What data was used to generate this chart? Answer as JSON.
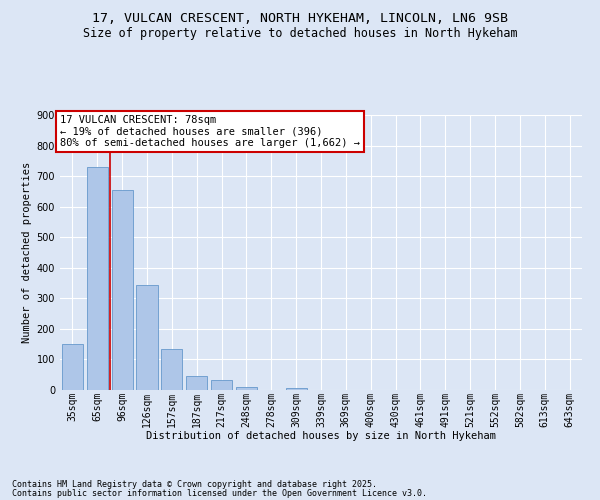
{
  "title1": "17, VULCAN CRESCENT, NORTH HYKEHAM, LINCOLN, LN6 9SB",
  "title2": "Size of property relative to detached houses in North Hykeham",
  "xlabel": "Distribution of detached houses by size in North Hykeham",
  "ylabel": "Number of detached properties",
  "footer1": "Contains HM Land Registry data © Crown copyright and database right 2025.",
  "footer2": "Contains public sector information licensed under the Open Government Licence v3.0.",
  "categories": [
    "35sqm",
    "65sqm",
    "96sqm",
    "126sqm",
    "157sqm",
    "187sqm",
    "217sqm",
    "248sqm",
    "278sqm",
    "309sqm",
    "339sqm",
    "369sqm",
    "400sqm",
    "430sqm",
    "461sqm",
    "491sqm",
    "521sqm",
    "552sqm",
    "582sqm",
    "613sqm",
    "643sqm"
  ],
  "values": [
    150,
    730,
    655,
    345,
    135,
    47,
    33,
    10,
    0,
    8,
    0,
    0,
    0,
    0,
    0,
    0,
    0,
    0,
    0,
    0,
    0
  ],
  "bar_color": "#aec6e8",
  "bar_edge_color": "#6699cc",
  "vline_x": 1.5,
  "vline_color": "#cc0000",
  "annotation_text": "17 VULCAN CRESCENT: 78sqm\n← 19% of detached houses are smaller (396)\n80% of semi-detached houses are larger (1,662) →",
  "annotation_box_color": "#ffffff",
  "annotation_box_edge": "#cc0000",
  "ylim": [
    0,
    900
  ],
  "yticks": [
    0,
    100,
    200,
    300,
    400,
    500,
    600,
    700,
    800,
    900
  ],
  "bg_color": "#dce6f5",
  "plot_bg_color": "#dce6f5",
  "title_fontsize": 9.5,
  "subtitle_fontsize": 8.5,
  "annotation_fontsize": 7.5,
  "axis_label_fontsize": 7.5,
  "tick_fontsize": 7,
  "ylabel_fontsize": 7.5
}
